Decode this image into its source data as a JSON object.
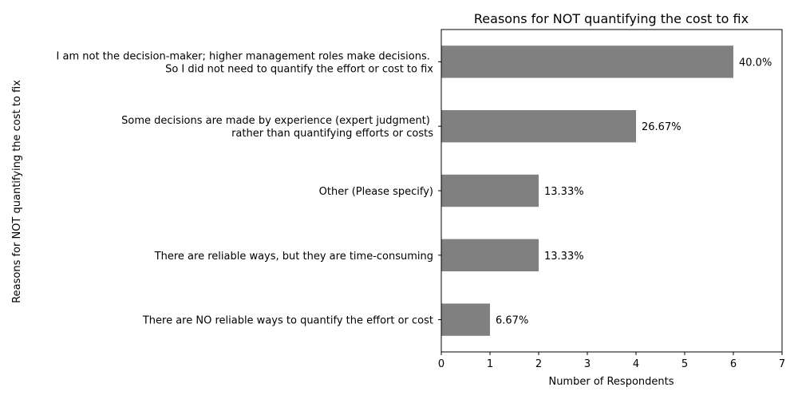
{
  "chart_data": {
    "type": "bar",
    "orientation": "horizontal",
    "title": "Reasons for NOT quantifying the cost to fix",
    "xlabel": "Number of Respondents",
    "ylabel": "Reasons for NOT quantifying the cost to fix",
    "xlim": [
      0,
      7
    ],
    "xticks": [
      "0",
      "1",
      "2",
      "3",
      "4",
      "5",
      "6",
      "7"
    ],
    "grid": false,
    "bar_color": "#808080",
    "categories": [
      [
        "There are NO reliable ways to quantify the effort or cost"
      ],
      [
        "There are reliable ways, but they are time-consuming"
      ],
      [
        "Other (Please specify)"
      ],
      [
        "Some decisions are made by experience (expert judgment) ",
        "rather than quantifying efforts or costs"
      ],
      [
        "I am not the decision-maker; higher management roles make decisions. ",
        "So I did not need to quantify the effort or cost to fix"
      ]
    ],
    "values": [
      1,
      2,
      2,
      4,
      6
    ],
    "data_labels": [
      "6.67%",
      "13.33%",
      "13.33%",
      "26.67%",
      "40.0%"
    ]
  }
}
